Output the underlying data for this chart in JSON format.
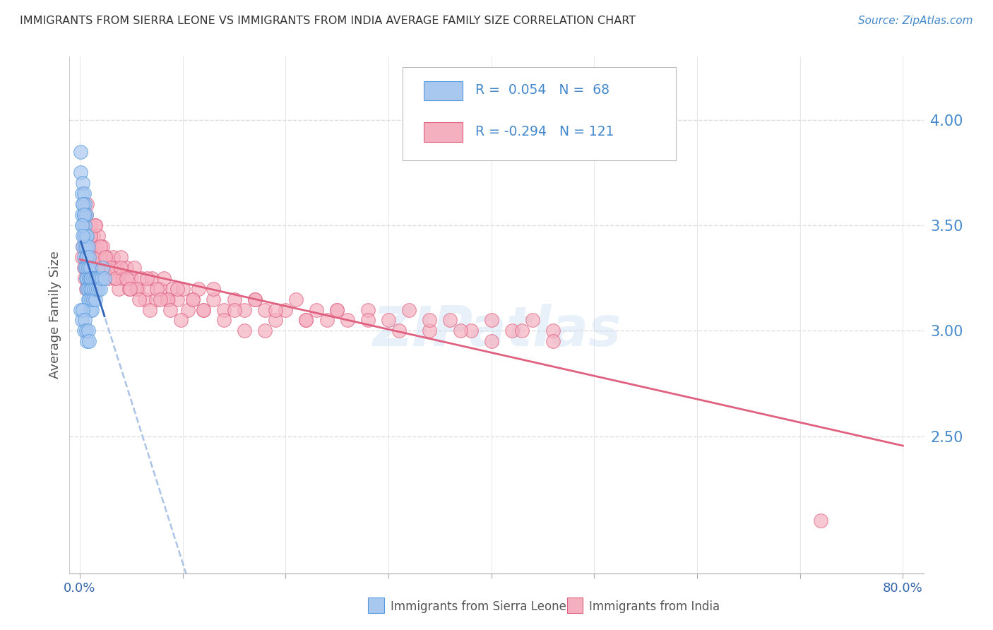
{
  "title": "IMMIGRANTS FROM SIERRA LEONE VS IMMIGRANTS FROM INDIA AVERAGE FAMILY SIZE CORRELATION CHART",
  "source": "Source: ZipAtlas.com",
  "ylabel": "Average Family Size",
  "watermark": "ZIPatlas",
  "sierra_leone_color": "#a8c8f0",
  "sierra_leone_edge_color": "#5599dd",
  "sierra_leone_line_color": "#3366bb",
  "india_color": "#f5b0c0",
  "india_edge_color": "#e06080",
  "india_line_color": "#e06080",
  "dashed_line_color": "#88aadd",
  "background_color": "#ffffff",
  "title_color": "#333333",
  "right_axis_color": "#4488cc",
  "grid_color": "#dddddd",
  "legend_text_color": "#4488cc",
  "legend_r_color": "#4488cc",
  "legend_border_color": "#cccccc",
  "bottom_label_color": "#555555",
  "sierra_leone_x": [
    0.001,
    0.001,
    0.002,
    0.002,
    0.003,
    0.003,
    0.003,
    0.003,
    0.004,
    0.004,
    0.004,
    0.004,
    0.005,
    0.005,
    0.005,
    0.005,
    0.005,
    0.006,
    0.006,
    0.006,
    0.006,
    0.006,
    0.006,
    0.007,
    0.007,
    0.007,
    0.007,
    0.008,
    0.008,
    0.008,
    0.008,
    0.009,
    0.009,
    0.009,
    0.01,
    0.01,
    0.01,
    0.01,
    0.011,
    0.011,
    0.012,
    0.012,
    0.013,
    0.013,
    0.014,
    0.015,
    0.015,
    0.016,
    0.017,
    0.018,
    0.019,
    0.02,
    0.021,
    0.022,
    0.024,
    0.001,
    0.002,
    0.003,
    0.004,
    0.005,
    0.006,
    0.007,
    0.008,
    0.009,
    0.003,
    0.004,
    0.002,
    0.003
  ],
  "sierra_leone_y": [
    3.85,
    3.75,
    3.65,
    3.55,
    3.7,
    3.6,
    3.5,
    3.4,
    3.55,
    3.45,
    3.65,
    3.35,
    3.5,
    3.4,
    3.3,
    3.6,
    3.45,
    3.45,
    3.35,
    3.55,
    3.3,
    3.25,
    3.4,
    3.35,
    3.25,
    3.45,
    3.2,
    3.3,
    3.4,
    3.2,
    3.15,
    3.25,
    3.35,
    3.15,
    3.3,
    3.2,
    3.25,
    3.1,
    3.25,
    3.15,
    3.2,
    3.1,
    3.15,
    3.25,
    3.2,
    3.15,
    3.25,
    3.2,
    3.25,
    3.2,
    3.25,
    3.2,
    3.25,
    3.3,
    3.25,
    3.1,
    3.05,
    3.1,
    3.0,
    3.05,
    3.0,
    2.95,
    3.0,
    2.95,
    3.6,
    3.55,
    3.5,
    3.45
  ],
  "india_x": [
    0.002,
    0.003,
    0.004,
    0.004,
    0.005,
    0.005,
    0.006,
    0.006,
    0.007,
    0.007,
    0.008,
    0.008,
    0.009,
    0.009,
    0.01,
    0.01,
    0.011,
    0.012,
    0.013,
    0.014,
    0.015,
    0.015,
    0.016,
    0.017,
    0.018,
    0.019,
    0.02,
    0.022,
    0.024,
    0.026,
    0.028,
    0.03,
    0.032,
    0.034,
    0.036,
    0.038,
    0.04,
    0.042,
    0.045,
    0.048,
    0.05,
    0.053,
    0.056,
    0.06,
    0.063,
    0.066,
    0.07,
    0.074,
    0.078,
    0.082,
    0.086,
    0.09,
    0.095,
    0.1,
    0.105,
    0.11,
    0.115,
    0.12,
    0.13,
    0.14,
    0.15,
    0.16,
    0.17,
    0.18,
    0.19,
    0.2,
    0.21,
    0.22,
    0.23,
    0.24,
    0.25,
    0.26,
    0.28,
    0.3,
    0.32,
    0.34,
    0.36,
    0.38,
    0.4,
    0.42,
    0.44,
    0.46,
    0.007,
    0.01,
    0.015,
    0.02,
    0.025,
    0.03,
    0.035,
    0.04,
    0.045,
    0.055,
    0.065,
    0.075,
    0.085,
    0.095,
    0.11,
    0.13,
    0.15,
    0.17,
    0.19,
    0.22,
    0.25,
    0.28,
    0.31,
    0.34,
    0.37,
    0.4,
    0.43,
    0.46,
    0.049,
    0.058,
    0.068,
    0.078,
    0.088,
    0.098,
    0.12,
    0.14,
    0.16,
    0.18,
    0.72
  ],
  "india_y": [
    3.35,
    3.4,
    3.45,
    3.3,
    3.5,
    3.25,
    3.55,
    3.2,
    3.45,
    3.35,
    3.4,
    3.3,
    3.35,
    3.45,
    3.3,
    3.5,
    3.35,
    3.4,
    3.45,
    3.35,
    3.5,
    3.3,
    3.4,
    3.35,
    3.45,
    3.3,
    3.35,
    3.4,
    3.3,
    3.35,
    3.25,
    3.3,
    3.35,
    3.25,
    3.3,
    3.2,
    3.35,
    3.25,
    3.3,
    3.2,
    3.25,
    3.3,
    3.2,
    3.25,
    3.15,
    3.2,
    3.25,
    3.15,
    3.2,
    3.25,
    3.15,
    3.2,
    3.15,
    3.2,
    3.1,
    3.15,
    3.2,
    3.1,
    3.15,
    3.1,
    3.15,
    3.1,
    3.15,
    3.1,
    3.05,
    3.1,
    3.15,
    3.05,
    3.1,
    3.05,
    3.1,
    3.05,
    3.1,
    3.05,
    3.1,
    3.0,
    3.05,
    3.0,
    3.05,
    3.0,
    3.05,
    3.0,
    3.6,
    3.45,
    3.5,
    3.4,
    3.35,
    3.3,
    3.25,
    3.3,
    3.25,
    3.2,
    3.25,
    3.2,
    3.15,
    3.2,
    3.15,
    3.2,
    3.1,
    3.15,
    3.1,
    3.05,
    3.1,
    3.05,
    3.0,
    3.05,
    3.0,
    2.95,
    3.0,
    2.95,
    3.2,
    3.15,
    3.1,
    3.15,
    3.1,
    3.05,
    3.1,
    3.05,
    3.0,
    3.0,
    2.1
  ],
  "xlim": [
    -0.01,
    0.82
  ],
  "ylim": [
    1.85,
    4.3
  ],
  "right_yticks": [
    4.0,
    3.5,
    3.0,
    2.5
  ],
  "right_ytick_labels": [
    "4.00",
    "3.50",
    "3.00",
    "2.50"
  ]
}
